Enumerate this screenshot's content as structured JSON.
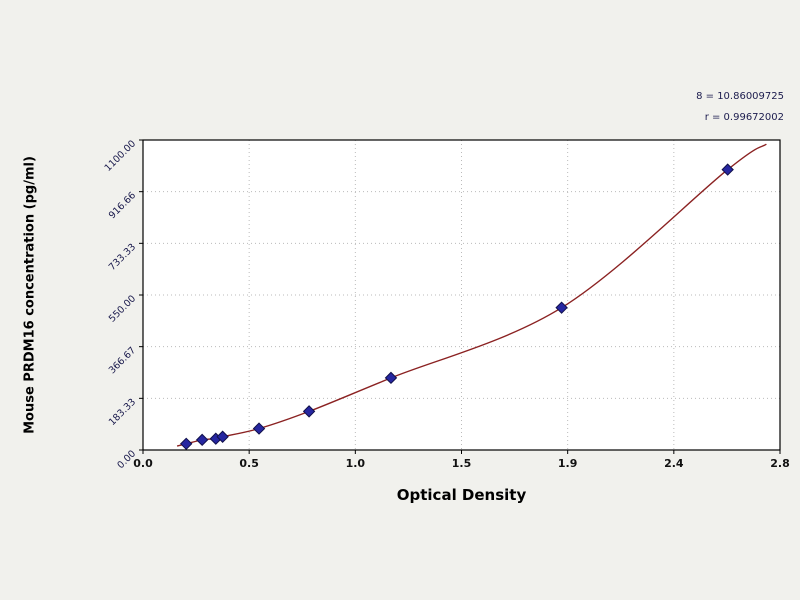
{
  "stats": {
    "line1": "8 = 10.86009725",
    "line2": "r = 0.99672002"
  },
  "chart_data": {
    "type": "scatter",
    "title": "",
    "xlabel": "Optical Density",
    "ylabel": "Mouse PRDM16 concentration (pg/ml)",
    "xlim": [
      0,
      2.8
    ],
    "ylim": [
      0,
      1100
    ],
    "grid": true,
    "legend": false,
    "x_ticks": [
      "0.0",
      "0.5",
      "1.0",
      "1.5",
      "1.9",
      "2.4",
      "2.8"
    ],
    "y_ticks": [
      "0.00",
      "183.33",
      "366.67",
      "550.00",
      "733.33",
      "916.66",
      "1100.00"
    ],
    "points": {
      "x": [
        0.19,
        0.26,
        0.32,
        0.35,
        0.51,
        0.73,
        1.09,
        1.84,
        2.57
      ],
      "y": [
        22,
        36,
        40,
        47,
        76,
        137,
        256,
        505,
        995
      ]
    },
    "fit_curve": {
      "start": [
        0.15,
        14
      ],
      "end": [
        2.74,
        1085
      ],
      "color": "#8b2222"
    },
    "point_color": "#2626a0",
    "point_edge_color": "#10104a",
    "grid_color": "#bbbbbb",
    "axis_color": "#000000"
  }
}
